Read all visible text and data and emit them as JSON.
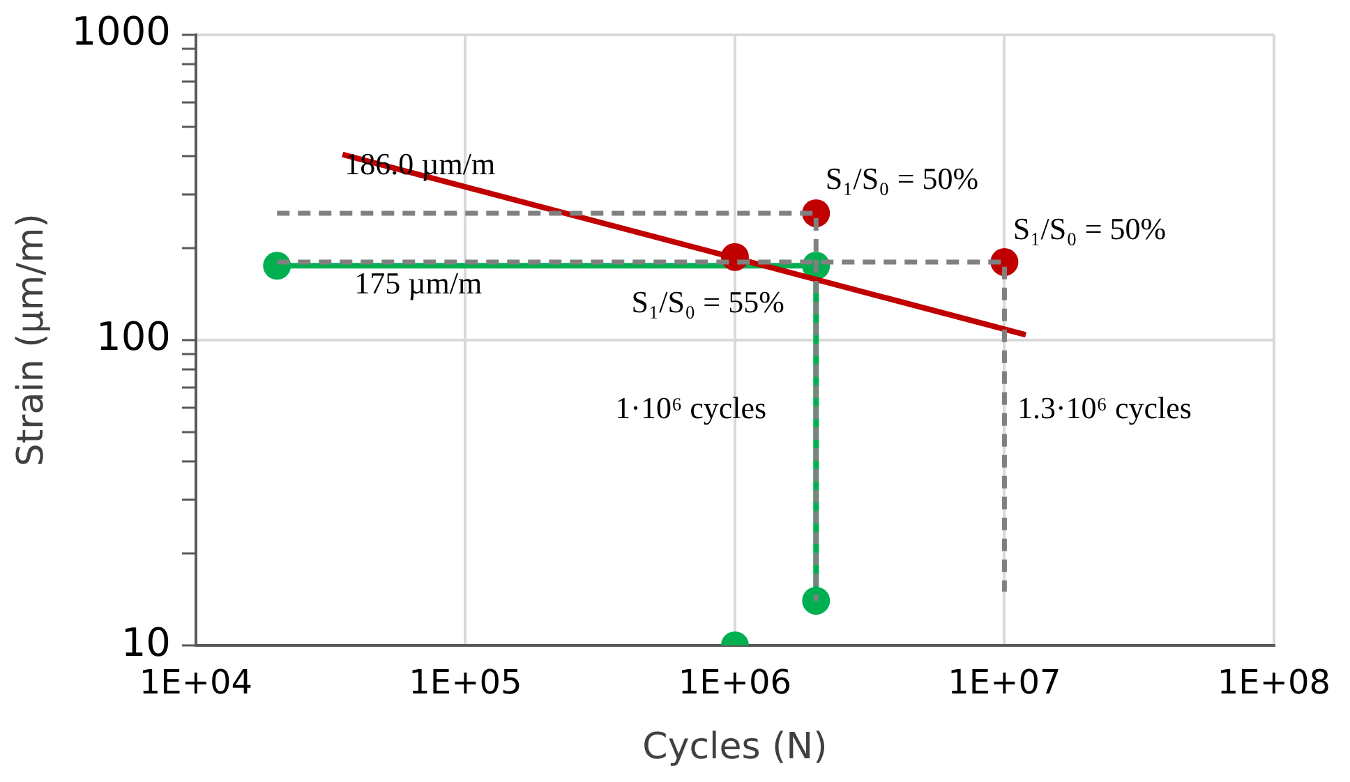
{
  "chart_data": {
    "type": "line",
    "xlabel": "Cycles (N)",
    "ylabel": "Strain (µm/m)",
    "log": "xy",
    "grid": true,
    "legend": false,
    "xlim": [
      10000,
      100000000
    ],
    "xticks": [
      {
        "value": 10000,
        "label": "1E+04"
      },
      {
        "value": 100000,
        "label": "1E+05"
      },
      {
        "value": 1000000,
        "label": "1E+06"
      },
      {
        "value": 10000000,
        "label": "1E+07"
      },
      {
        "value": 100000000,
        "label": "1E+08"
      }
    ],
    "ylim": [
      10,
      1000
    ],
    "yticks": [
      10,
      {
        "value": 20,
        "label": null
      },
      {
        "value": 30,
        "label": null
      },
      {
        "value": 40,
        "label": null
      },
      {
        "value": 50,
        "label": null
      },
      {
        "value": 60,
        "label": null
      },
      {
        "value": 70,
        "label": null
      },
      {
        "value": 80,
        "label": null
      },
      {
        "value": 90,
        "label": null
      },
      100,
      {
        "value": 200,
        "label": null
      },
      {
        "value": 300,
        "label": null
      },
      {
        "value": 400,
        "label": null
      },
      {
        "value": 500,
        "label": null
      },
      {
        "value": 600,
        "label": null
      },
      {
        "value": 700,
        "label": null
      },
      {
        "value": 800,
        "label": null
      },
      {
        "value": 900,
        "label": null
      },
      1000
    ],
    "series": [
      {
        "type": "line",
        "color": "#808080",
        "line_style": "dashed",
        "marker": "none",
        "x": [
          20000,
          2000000,
          2000000
        ],
        "values": [
          260,
          260,
          14
        ]
      },
      {
        "type": "line",
        "color": "#808080",
        "line_style": "dashed",
        "marker": "none",
        "x": [
          20000,
          10000000,
          10000000
        ],
        "values": [
          180,
          180,
          15
        ]
      },
      {
        "type": "line",
        "color": "#c00000",
        "line_style": "solid",
        "marker": "none",
        "x": [
          35000,
          12000000
        ],
        "values": [
          405,
          104
        ]
      },
      {
        "type": "scatter",
        "color": "#c00000",
        "marker": "circle",
        "x": [
          1000000,
          2000000,
          10000000
        ],
        "values": [
          187,
          260,
          180
        ]
      },
      {
        "type": "line",
        "color": "#00b050",
        "line_style": "solid",
        "marker": "circle",
        "x": [
          20000,
          2000000,
          2000000
        ],
        "values": [
          175,
          175,
          14
        ]
      },
      {
        "type": "scatter",
        "color": "#00b050",
        "marker": "circle",
        "x": [
          1000000
        ],
        "values": [
          10
        ]
      }
    ],
    "annotations": [
      "186.0 µm/m",
      "175 µm/m",
      "S₁/S₀ = 50%",
      "S₁/S₀ = 50%",
      "S₁/S₀ = 55%",
      "1·10⁶ cycles",
      "1.3·10⁶ cycles"
    ]
  }
}
